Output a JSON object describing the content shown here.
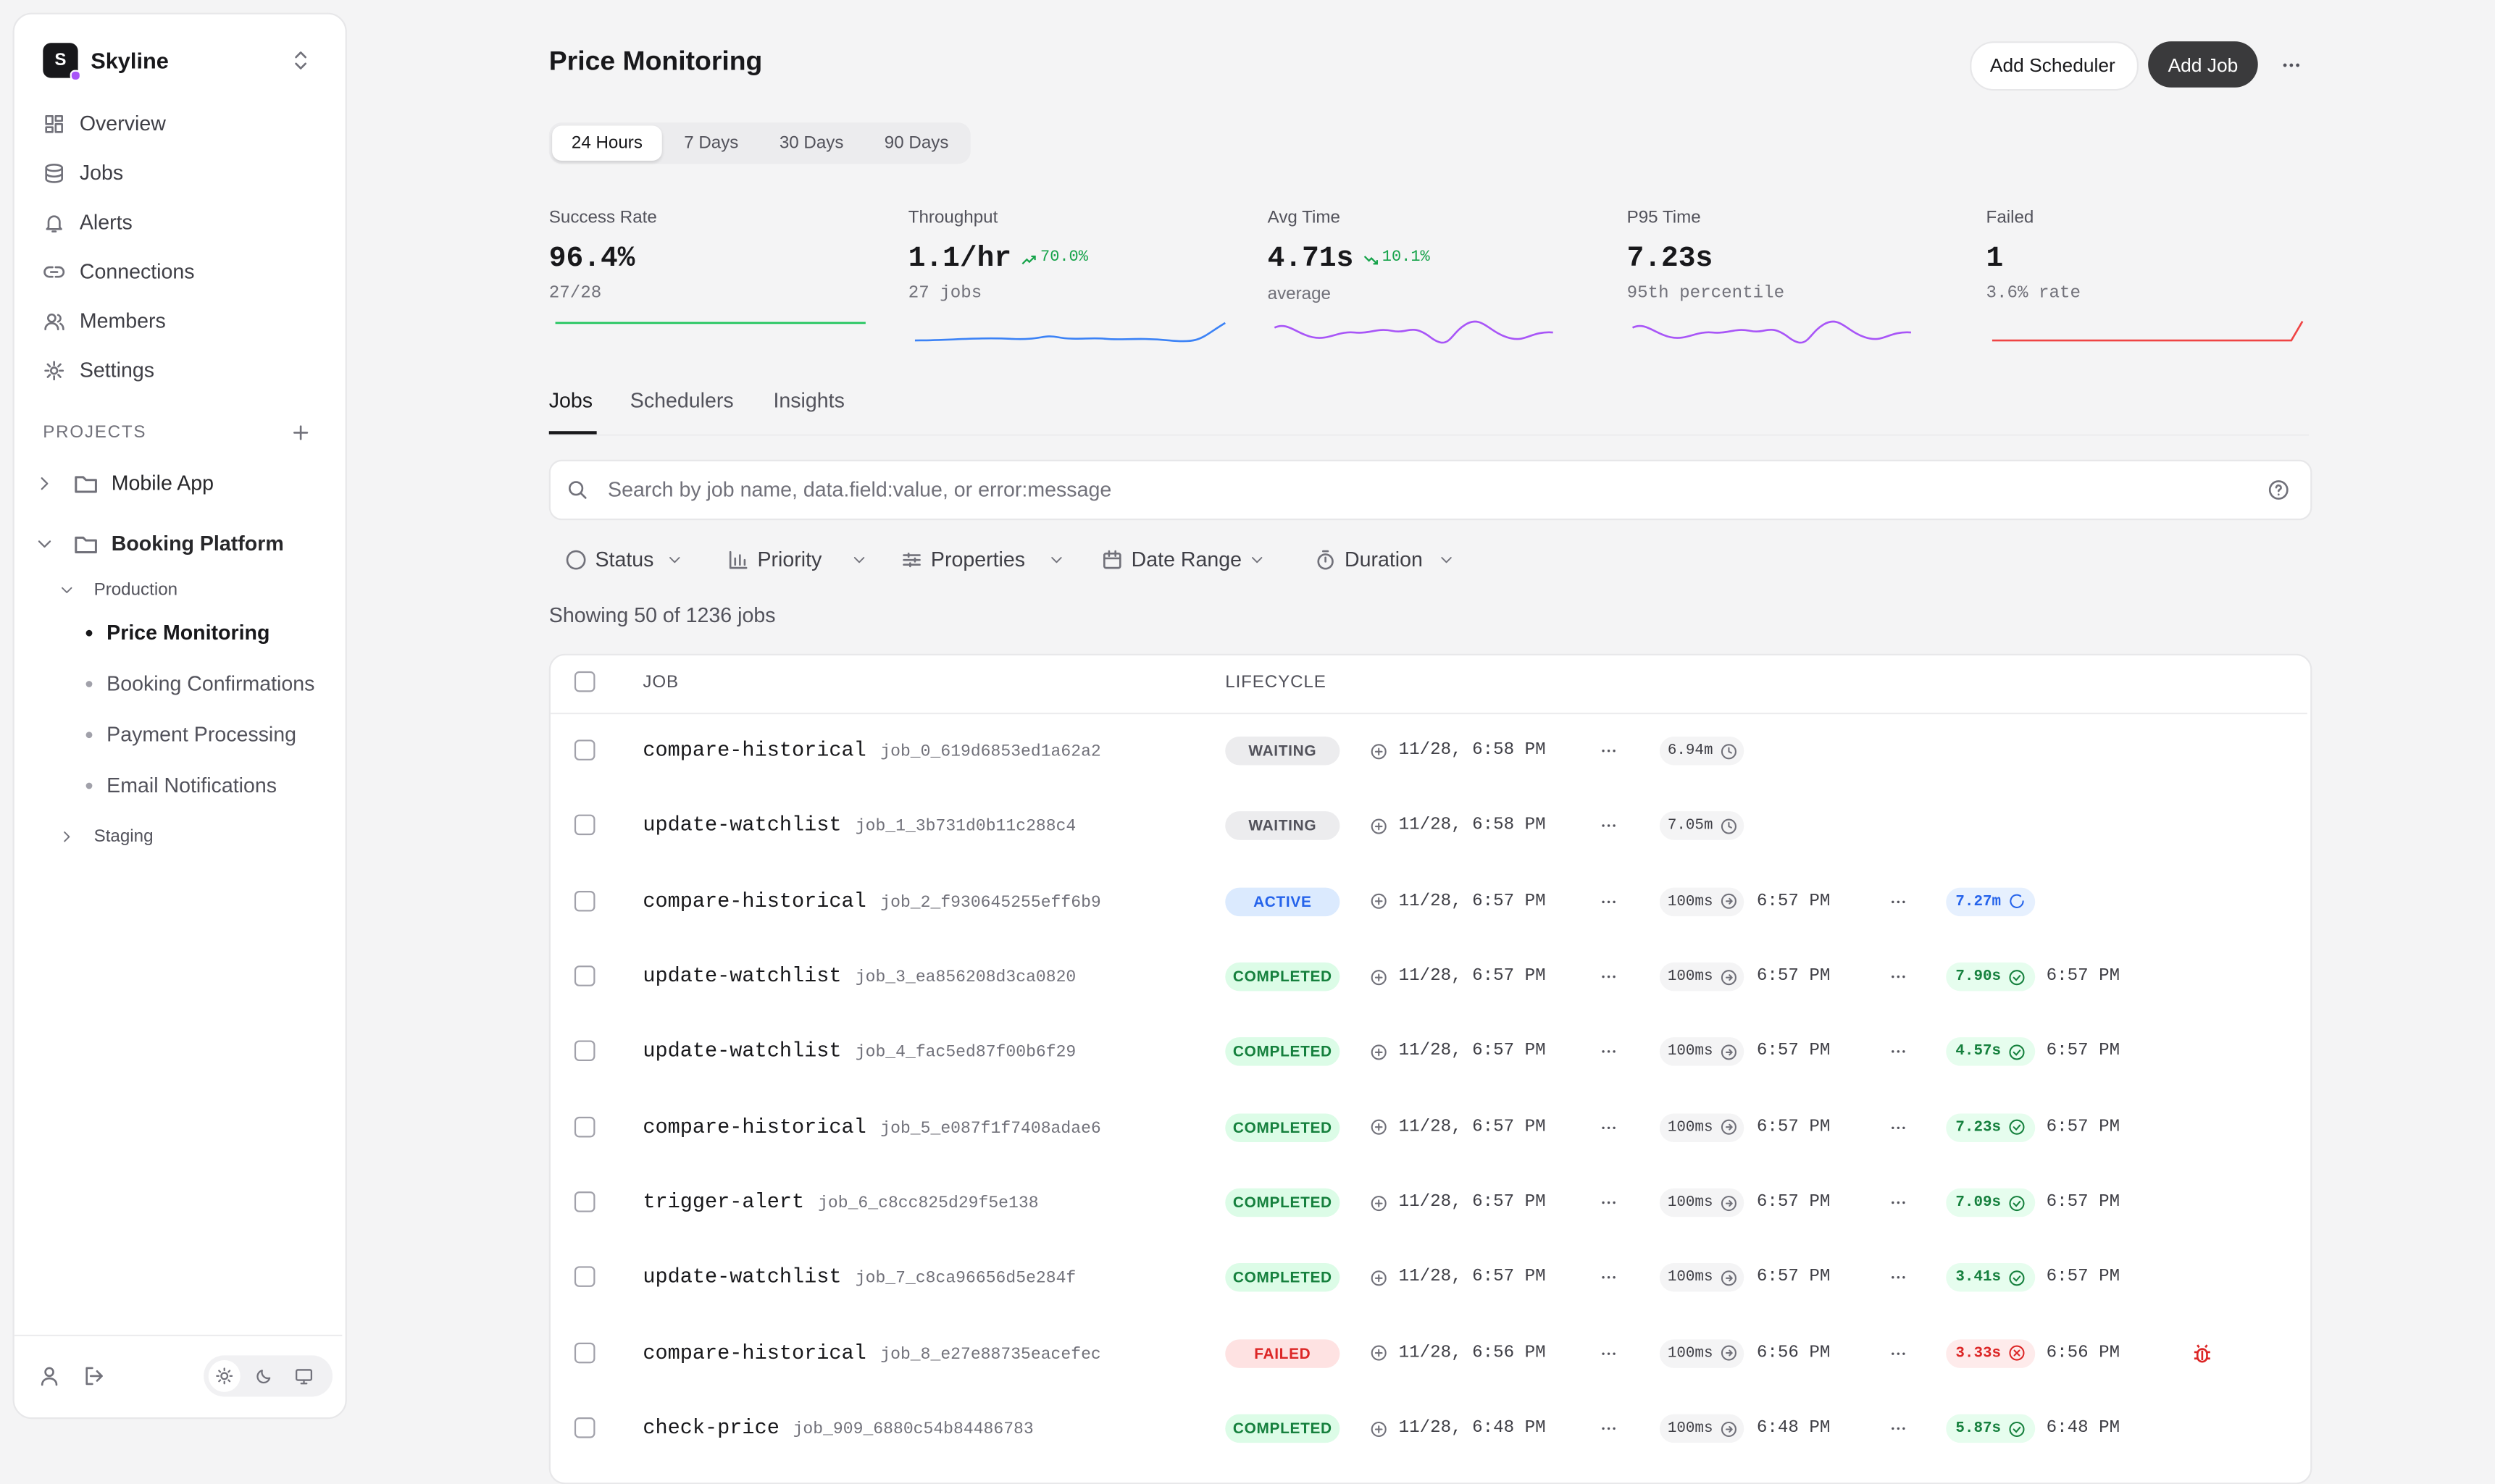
{
  "sidebar": {
    "workspace": "Skyline",
    "workspace_initial": "S",
    "nav": [
      "Overview",
      "Jobs",
      "Alerts",
      "Connections",
      "Members",
      "Settings"
    ],
    "projects_label": "PROJECTS",
    "projects": [
      {
        "name": "Mobile App"
      },
      {
        "name": "Booking Platform",
        "environments": [
          {
            "name": "Production",
            "pages": [
              "Price Monitoring",
              "Booking Confirmations",
              "Payment Processing",
              "Email Notifications"
            ]
          },
          {
            "name": "Staging"
          }
        ]
      }
    ]
  },
  "header": {
    "title": "Price Monitoring",
    "buttons": [
      "Add Scheduler",
      "Add Job"
    ]
  },
  "time_ranges": [
    "24 Hours",
    "7 Days",
    "30 Days",
    "90 Days"
  ],
  "metrics": [
    {
      "label": "Success Rate",
      "value": "96.4%",
      "sub": "27/28"
    },
    {
      "label": "Throughput",
      "value": "1.1/hr",
      "change": "70.0%",
      "sub": "27 jobs"
    },
    {
      "label": "Avg Time",
      "value": "4.71s",
      "change": "10.1%",
      "sub": "average"
    },
    {
      "label": "P95 Time",
      "value": "7.23s",
      "sub": "95th percentile"
    },
    {
      "label": "Failed",
      "value": "1",
      "sub": "3.6% rate"
    }
  ],
  "tabs": [
    "Jobs",
    "Schedulers",
    "Insights"
  ],
  "search_placeholder": "Search by job name, data.field:value, or error:message",
  "filters": [
    "Status",
    "Priority",
    "Properties",
    "Date Range",
    "Duration"
  ],
  "summary": "Showing 50 of 1236 jobs",
  "table": {
    "columns": [
      "JOB",
      "LIFECYCLE"
    ],
    "rows": [
      {
        "name": "compare-historical",
        "id": "job_0_619d6853ed1a62a2",
        "status": "WAITING",
        "created": "11/28, 6:58 PM",
        "wait": "6.94m"
      },
      {
        "name": "update-watchlist",
        "id": "job_1_3b731d0b11c288c4",
        "status": "WAITING",
        "created": "11/28, 6:58 PM",
        "wait": "7.05m"
      },
      {
        "name": "compare-historical",
        "id": "job_2_f930645255eff6b9",
        "status": "ACTIVE",
        "created": "11/28, 6:57 PM",
        "wait": "100ms",
        "started": "6:57 PM",
        "duration": "7.27m"
      },
      {
        "name": "update-watchlist",
        "id": "job_3_ea856208d3ca0820",
        "status": "COMPLETED",
        "created": "11/28, 6:57 PM",
        "wait": "100ms",
        "started": "6:57 PM",
        "duration": "7.90s",
        "finished": "6:57 PM"
      },
      {
        "name": "update-watchlist",
        "id": "job_4_fac5ed87f00b6f29",
        "status": "COMPLETED",
        "created": "11/28, 6:57 PM",
        "wait": "100ms",
        "started": "6:57 PM",
        "duration": "4.57s",
        "finished": "6:57 PM"
      },
      {
        "name": "compare-historical",
        "id": "job_5_e087f1f7408adae6",
        "status": "COMPLETED",
        "created": "11/28, 6:57 PM",
        "wait": "100ms",
        "started": "6:57 PM",
        "duration": "7.23s",
        "finished": "6:57 PM"
      },
      {
        "name": "trigger-alert",
        "id": "job_6_c8cc825d29f5e138",
        "status": "COMPLETED",
        "created": "11/28, 6:57 PM",
        "wait": "100ms",
        "started": "6:57 PM",
        "duration": "7.09s",
        "finished": "6:57 PM"
      },
      {
        "name": "update-watchlist",
        "id": "job_7_c8ca96656d5e284f",
        "status": "COMPLETED",
        "created": "11/28, 6:57 PM",
        "wait": "100ms",
        "started": "6:57 PM",
        "duration": "3.41s",
        "finished": "6:57 PM"
      },
      {
        "name": "compare-historical",
        "id": "job_8_e27e88735eacefec",
        "status": "FAILED",
        "created": "11/28, 6:56 PM",
        "wait": "100ms",
        "started": "6:56 PM",
        "duration": "3.33s",
        "finished": "6:56 PM"
      },
      {
        "name": "check-price",
        "id": "job_909_6880c54b84486783",
        "status": "COMPLETED",
        "created": "11/28, 6:48 PM",
        "wait": "100ms",
        "started": "6:48 PM",
        "duration": "5.87s",
        "finished": "6:48 PM"
      }
    ]
  }
}
